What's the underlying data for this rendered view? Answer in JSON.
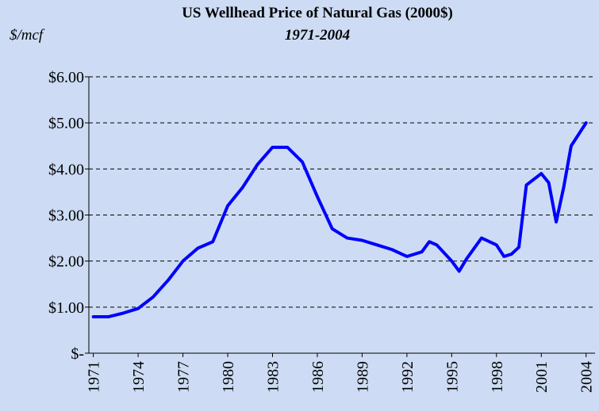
{
  "chart_data": {
    "type": "line",
    "title": "US Wellhead Price of Natural Gas (2000$)",
    "subtitle": "1971-2004",
    "y_label": "$/mcf",
    "x": [
      1971,
      1972,
      1973,
      1974,
      1975,
      1976,
      1977,
      1978,
      1979,
      1980,
      1981,
      1982,
      1983,
      1984,
      1985,
      1986,
      1987,
      1988,
      1989,
      1990,
      1991,
      1992,
      1993,
      1993.5,
      1994,
      1995,
      1995.5,
      1996,
      1997,
      1998,
      1998.5,
      1999,
      1999.5,
      2000,
      2001,
      2001.5,
      2002,
      2002.5,
      2003,
      2004
    ],
    "series": [
      {
        "name": "Wellhead price",
        "color": "#0000ff",
        "values": [
          0.79,
          0.79,
          0.87,
          0.97,
          1.22,
          1.58,
          2.0,
          2.28,
          2.42,
          3.2,
          3.6,
          4.1,
          4.47,
          4.47,
          4.15,
          3.4,
          2.7,
          2.5,
          2.45,
          2.35,
          2.25,
          2.1,
          2.2,
          2.42,
          2.35,
          2.0,
          1.78,
          2.05,
          2.5,
          2.35,
          2.1,
          2.15,
          2.3,
          3.65,
          3.9,
          3.7,
          2.85,
          3.6,
          4.5,
          5.0
        ]
      }
    ],
    "xlim": [
      1970.7,
      2004.6
    ],
    "xticks": [
      1971,
      1974,
      1977,
      1980,
      1983,
      1986,
      1989,
      1992,
      1995,
      1998,
      2001,
      2004
    ],
    "ylim": [
      0,
      6
    ],
    "yticks": [
      {
        "value": 0,
        "label": "$-"
      },
      {
        "value": 1,
        "label": "$1.00"
      },
      {
        "value": 2,
        "label": "$2.00"
      },
      {
        "value": 3,
        "label": "$3.00"
      },
      {
        "value": 4,
        "label": "$4.00"
      },
      {
        "value": 5,
        "label": "$5.00"
      },
      {
        "value": 6,
        "label": "$6.00"
      }
    ],
    "grid": true
  }
}
